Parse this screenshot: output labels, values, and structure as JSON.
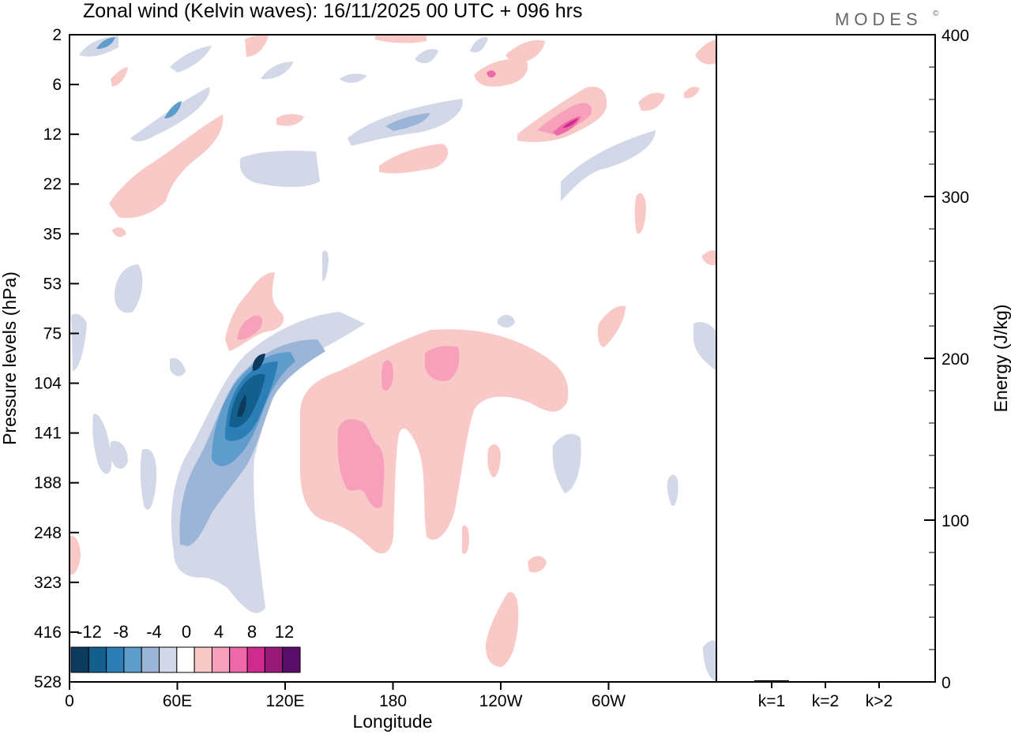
{
  "title": "Zonal wind (Kelvin waves):  16/11/2025  00 UTC  + 096 hrs",
  "brand": "MODES",
  "brand_mark": "©",
  "chart_data": [
    {
      "type": "heatmap",
      "title": "Zonal wind (Kelvin waves):  16/11/2025  00 UTC  + 096 hrs",
      "xlabel": "Longitude",
      "ylabel": "Pressure levels (hPa)",
      "x_ticks": [
        "0",
        "60E",
        "120E",
        "180",
        "120W",
        "60W"
      ],
      "x_tick_values": [
        0,
        60,
        120,
        180,
        240,
        300
      ],
      "xlim": [
        0,
        360
      ],
      "y_ticks": [
        "2",
        "6",
        "12",
        "22",
        "35",
        "53",
        "75",
        "104",
        "141",
        "188",
        "248",
        "323",
        "416",
        "528"
      ],
      "y_scale": "level index (top = 2 hPa)",
      "colorbar": {
        "labels": [
          "-12",
          "-8",
          "-4",
          "0",
          "4",
          "8",
          "12"
        ],
        "levels": [
          -14,
          -12,
          -10,
          -8,
          -6,
          -4,
          -2,
          2,
          4,
          6,
          8,
          10,
          12,
          14
        ],
        "colors": [
          "#0d3b5e",
          "#135f8e",
          "#2b7fb6",
          "#5e9ccb",
          "#9bb5d8",
          "#d3d8e8",
          "#ffffff",
          "#f8c9c6",
          "#f7a0bc",
          "#ee69a8",
          "#cf2a8e",
          "#981977",
          "#5a0f6a"
        ]
      },
      "features": [
        {
          "label": "negative core",
          "lon": 95,
          "pressure_hPa": 120,
          "value": -14
        },
        {
          "label": "negative band",
          "lon_range": [
            60,
            130
          ],
          "pressure_range_hPa": [
            75,
            323
          ],
          "value": -8
        },
        {
          "label": "positive region",
          "lon_range": [
            130,
            280
          ],
          "pressure_range_hPa": [
            75,
            323
          ],
          "value": 6
        },
        {
          "label": "positive core",
          "lon": 145,
          "pressure_hPa": 160,
          "value": 6
        },
        {
          "label": "positive core",
          "lon": 200,
          "pressure_hPa": 95,
          "value": 6
        },
        {
          "label": "upper positive core",
          "lon": 275,
          "pressure_hPa": 12,
          "value": 10
        },
        {
          "label": "upper negative streak",
          "lon_range": [
            90,
            210
          ],
          "pressure_range_hPa": [
            6,
            22
          ],
          "value": -6
        },
        {
          "label": "lower positive",
          "lon": 232,
          "pressure_hPa": 380,
          "value": 3
        }
      ]
    },
    {
      "type": "bar",
      "ylabel": "Energy (J/kg)",
      "categories": [
        "k=1",
        "k=2",
        "k>2"
      ],
      "values": [
        1,
        0.5,
        0.5
      ],
      "ylim": [
        0,
        400
      ],
      "y_ticks": [
        "0",
        "100",
        "200",
        "300",
        "400"
      ]
    }
  ]
}
